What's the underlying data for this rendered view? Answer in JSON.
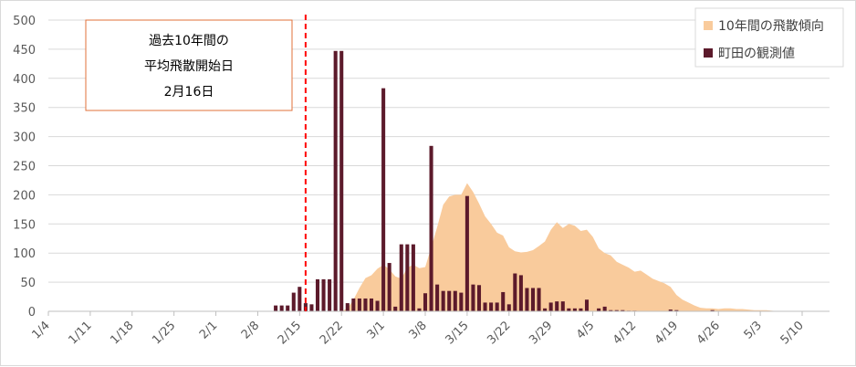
{
  "chart_data": {
    "type": "bar",
    "title": "",
    "xlabel": "",
    "ylabel": "",
    "ylim": [
      0,
      500
    ],
    "yticks": [
      0,
      50,
      100,
      150,
      200,
      250,
      300,
      350,
      400,
      450,
      500
    ],
    "grid": true,
    "legend_position": "top-right",
    "x_start_date": "1/4",
    "x_end_date": "5/10",
    "x_tick_labels": [
      "1/4",
      "1/11",
      "1/18",
      "1/25",
      "2/1",
      "2/8",
      "2/15",
      "2/22",
      "3/1",
      "3/8",
      "3/15",
      "3/22",
      "3/29",
      "4/5",
      "4/12",
      "4/19",
      "4/26",
      "5/3",
      "5/10"
    ],
    "series": [
      {
        "name": "10年間の飛散傾向",
        "kind": "area",
        "color": "#f9cb9c",
        "points": [
          [
            "2/22",
            0
          ],
          [
            "2/23",
            5
          ],
          [
            "2/24",
            20
          ],
          [
            "2/25",
            40
          ],
          [
            "2/26",
            57
          ],
          [
            "2/27",
            62
          ],
          [
            "2/28",
            73
          ],
          [
            "3/1",
            80
          ],
          [
            "3/2",
            72
          ],
          [
            "3/3",
            60
          ],
          [
            "3/4",
            56
          ],
          [
            "3/5",
            75
          ],
          [
            "3/6",
            80
          ],
          [
            "3/7",
            74
          ],
          [
            "3/8",
            76
          ],
          [
            "3/9",
            110
          ],
          [
            "3/10",
            145
          ],
          [
            "3/11",
            183
          ],
          [
            "3/12",
            197
          ],
          [
            "3/13",
            200
          ],
          [
            "3/14",
            200
          ],
          [
            "3/15",
            220
          ],
          [
            "3/16",
            205
          ],
          [
            "3/17",
            185
          ],
          [
            "3/18",
            163
          ],
          [
            "3/19",
            150
          ],
          [
            "3/20",
            135
          ],
          [
            "3/21",
            130
          ],
          [
            "3/22",
            110
          ],
          [
            "3/23",
            103
          ],
          [
            "3/24",
            101
          ],
          [
            "3/25",
            102
          ],
          [
            "3/26",
            105
          ],
          [
            "3/27",
            112
          ],
          [
            "3/28",
            120
          ],
          [
            "3/29",
            140
          ],
          [
            "3/30",
            153
          ],
          [
            "3/31",
            143
          ],
          [
            "4/1",
            150
          ],
          [
            "4/2",
            147
          ],
          [
            "4/3",
            138
          ],
          [
            "4/4",
            140
          ],
          [
            "4/5",
            128
          ],
          [
            "4/6",
            108
          ],
          [
            "4/7",
            100
          ],
          [
            "4/8",
            96
          ],
          [
            "4/9",
            85
          ],
          [
            "4/10",
            80
          ],
          [
            "4/11",
            75
          ],
          [
            "4/12",
            68
          ],
          [
            "4/13",
            70
          ],
          [
            "4/14",
            63
          ],
          [
            "4/15",
            56
          ],
          [
            "4/16",
            52
          ],
          [
            "4/17",
            48
          ],
          [
            "4/18",
            42
          ],
          [
            "4/19",
            28
          ],
          [
            "4/20",
            20
          ],
          [
            "4/21",
            15
          ],
          [
            "4/22",
            10
          ],
          [
            "4/23",
            6
          ],
          [
            "4/24",
            5
          ],
          [
            "4/25",
            5
          ],
          [
            "4/26",
            4
          ],
          [
            "4/27",
            5
          ],
          [
            "4/28",
            5
          ],
          [
            "4/29",
            4
          ],
          [
            "4/30",
            4
          ],
          [
            "5/1",
            3
          ],
          [
            "5/2",
            2
          ],
          [
            "5/3",
            2
          ],
          [
            "5/4",
            2
          ],
          [
            "5/5",
            1
          ],
          [
            "5/6",
            0
          ]
        ]
      },
      {
        "name": "町田の観測値",
        "kind": "bar",
        "color": "#5c1a2b",
        "points": [
          [
            "2/11",
            10
          ],
          [
            "2/12",
            10
          ],
          [
            "2/13",
            10
          ],
          [
            "2/14",
            32
          ],
          [
            "2/15",
            42
          ],
          [
            "2/16",
            14
          ],
          [
            "2/17",
            12
          ],
          [
            "2/18",
            55
          ],
          [
            "2/19",
            55
          ],
          [
            "2/20",
            55
          ],
          [
            "2/21",
            447
          ],
          [
            "2/22",
            447
          ],
          [
            "2/23",
            14
          ],
          [
            "2/24",
            22
          ],
          [
            "2/25",
            22
          ],
          [
            "2/26",
            22
          ],
          [
            "2/27",
            22
          ],
          [
            "2/28",
            18
          ],
          [
            "3/1",
            383
          ],
          [
            "3/2",
            83
          ],
          [
            "3/3",
            8
          ],
          [
            "3/4",
            115
          ],
          [
            "3/5",
            115
          ],
          [
            "3/6",
            115
          ],
          [
            "3/7",
            5
          ],
          [
            "3/8",
            31
          ],
          [
            "3/9",
            284
          ],
          [
            "3/10",
            46
          ],
          [
            "3/11",
            35
          ],
          [
            "3/12",
            35
          ],
          [
            "3/13",
            35
          ],
          [
            "3/14",
            32
          ],
          [
            "3/15",
            198
          ],
          [
            "3/16",
            46
          ],
          [
            "3/17",
            45
          ],
          [
            "3/18",
            15
          ],
          [
            "3/19",
            15
          ],
          [
            "3/20",
            15
          ],
          [
            "3/21",
            33
          ],
          [
            "3/22",
            12
          ],
          [
            "3/23",
            65
          ],
          [
            "3/24",
            62
          ],
          [
            "3/25",
            40
          ],
          [
            "3/26",
            40
          ],
          [
            "3/27",
            40
          ],
          [
            "3/28",
            5
          ],
          [
            "3/29",
            15
          ],
          [
            "3/30",
            17
          ],
          [
            "3/31",
            17
          ],
          [
            "4/1",
            5
          ],
          [
            "4/2",
            5
          ],
          [
            "4/3",
            5
          ],
          [
            "4/4",
            20
          ],
          [
            "4/5",
            0
          ],
          [
            "4/6",
            5
          ],
          [
            "4/7",
            8
          ],
          [
            "4/8",
            2
          ],
          [
            "4/9",
            2
          ],
          [
            "4/10",
            2
          ],
          [
            "4/11",
            1
          ],
          [
            "4/12",
            1
          ],
          [
            "4/18",
            3
          ],
          [
            "4/19",
            2
          ],
          [
            "4/25",
            2
          ]
        ]
      }
    ],
    "annotation": {
      "lines": [
        "過去10年間の",
        "平均飛散開始日",
        "2月16日"
      ],
      "marker_date": "2/16",
      "line_color": "#ff0000",
      "box_border": "#e2703a"
    }
  }
}
